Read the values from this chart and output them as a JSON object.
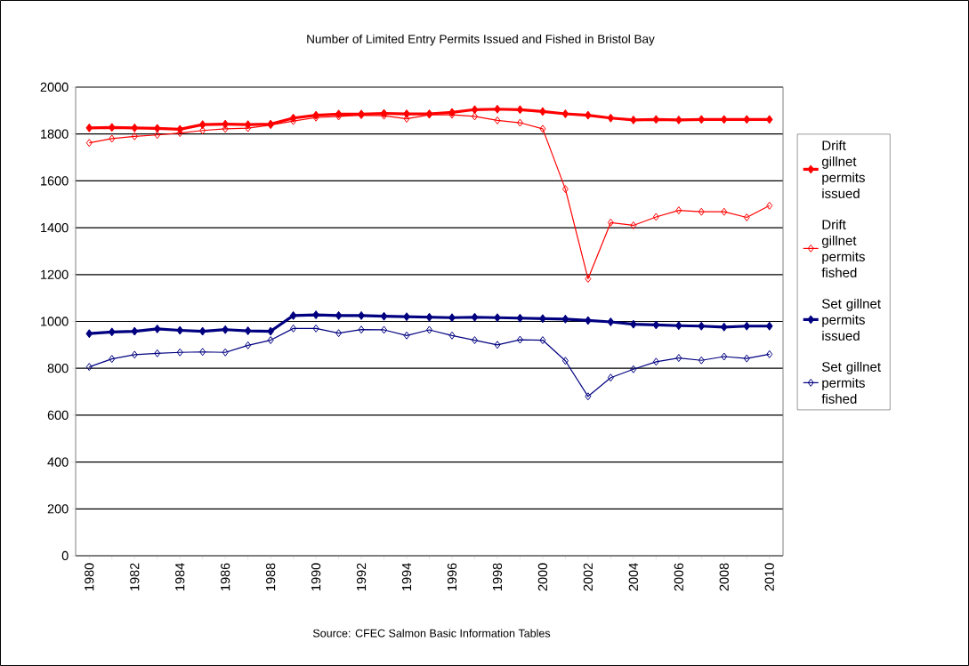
{
  "chart_data": {
    "type": "line",
    "title": "Number of Limited Entry Permits Issued and Fished in Bristol Bay",
    "categories": [
      "1980",
      null,
      "1982",
      null,
      "1984",
      null,
      "1986",
      null,
      "1988",
      null,
      "1990",
      null,
      "1992",
      null,
      "1994",
      null,
      "1996",
      null,
      "1998",
      null,
      "2000",
      null,
      "2002",
      null,
      "2004",
      null,
      "2006",
      null,
      "2008",
      null,
      "2010"
    ],
    "series": [
      {
        "name": "Drift gillnet permits issued",
        "color": "#ff0000",
        "values": [
          1826,
          1828,
          1826,
          1824,
          1820,
          1840,
          1842,
          1840,
          1842,
          1868,
          1880,
          1885,
          1885,
          1888,
          1886,
          1886,
          1892,
          1904,
          1906,
          1904,
          1896,
          1886,
          1880,
          1868,
          1860,
          1862,
          1860,
          1862,
          1862,
          1862,
          1862
        ]
      },
      {
        "name": "Drift gillnet permits fished",
        "color": "#ff0000",
        "values": [
          1762,
          1780,
          1790,
          1796,
          1804,
          1815,
          1822,
          1825,
          1838,
          1855,
          1870,
          1875,
          1880,
          1878,
          1865,
          1882,
          1882,
          1875,
          1858,
          1848,
          1822,
          1565,
          1182,
          1422,
          1410,
          1446,
          1474,
          1468,
          1468,
          1444,
          1494
        ]
      },
      {
        "name": "Set gillnet permits issued",
        "color": "#000080",
        "values": [
          948,
          955,
          958,
          968,
          962,
          958,
          965,
          960,
          958,
          1025,
          1028,
          1025,
          1025,
          1022,
          1020,
          1018,
          1016,
          1018,
          1016,
          1014,
          1012,
          1010,
          1004,
          998,
          988,
          985,
          982,
          980,
          976,
          980,
          980
        ]
      },
      {
        "name": "Set gillnet permits fished",
        "color": "#000080",
        "values": [
          806,
          840,
          858,
          864,
          868,
          870,
          868,
          898,
          920,
          970,
          970,
          950,
          965,
          964,
          940,
          964,
          940,
          920,
          900,
          922,
          920,
          832,
          680,
          760,
          796,
          828,
          844,
          834,
          850,
          842,
          860
        ]
      }
    ],
    "ylim": [
      0,
      2000
    ],
    "yticks": [
      0,
      200,
      400,
      600,
      800,
      1000,
      1200,
      1400,
      1600,
      1800,
      2000
    ],
    "grid": "y",
    "legend": "right",
    "marker": "diamond",
    "line_style": "solid",
    "annotations": [
      "Source: CFEC Salmon Basic Information Tables"
    ]
  }
}
